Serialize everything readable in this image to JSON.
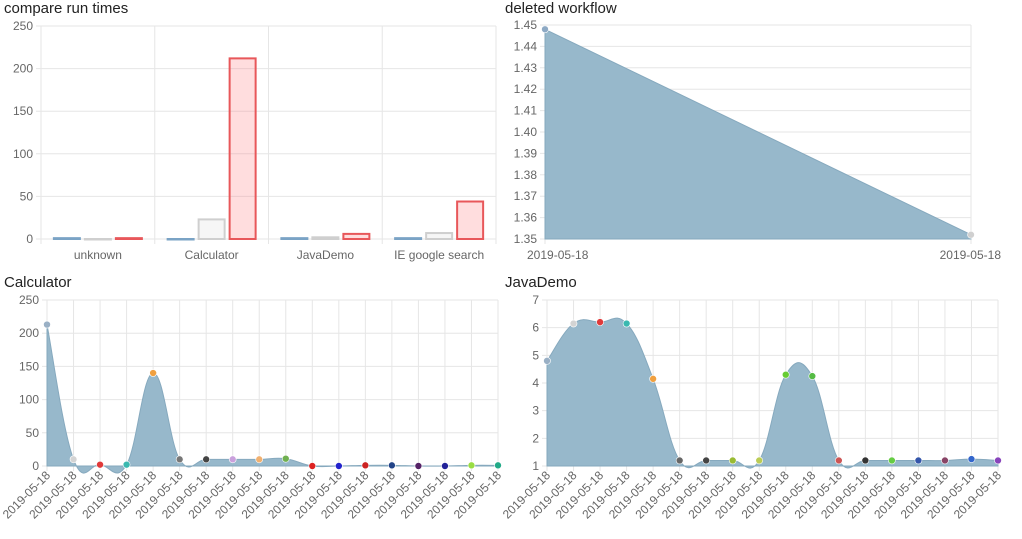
{
  "chart_data": [
    {
      "type": "bar",
      "title": "compare run times",
      "categories": [
        "unknown",
        "Calculator",
        "JavaDemo",
        "IE google search"
      ],
      "series": [
        {
          "values": [
            1,
            0,
            1,
            1
          ],
          "color": "#7aa3c5"
        },
        {
          "values": [
            0,
            23,
            2,
            7
          ],
          "color": "#cfcfcf"
        },
        {
          "values": [
            1,
            212,
            6,
            44
          ],
          "color": "#e8575a"
        }
      ],
      "ylim": [
        0,
        250
      ],
      "yticks": [
        0,
        50,
        100,
        150,
        200,
        250
      ],
      "grid": true
    },
    {
      "type": "area",
      "title": "deleted workflow",
      "x": [
        "2019-05-18",
        "2019-05-18"
      ],
      "values": [
        1.448,
        1.352
      ],
      "ylim": [
        1.35,
        1.45
      ],
      "yticks": [
        "1.35",
        "1.36",
        "1.37",
        "1.38",
        "1.39",
        "1.40",
        "1.41",
        "1.42",
        "1.43",
        "1.44",
        "1.45"
      ],
      "fill": "#97b8cb",
      "point_colors": [
        "#8da9c4",
        "#d0d0d0"
      ],
      "grid": true
    },
    {
      "type": "area",
      "title": "Calculator",
      "x": [
        "2019-05-18",
        "2019-05-18",
        "2019-05-18",
        "2019-05-18",
        "2019-05-18",
        "2019-05-18",
        "2019-05-18",
        "2019-05-18",
        "2019-05-18",
        "2019-05-18",
        "2019-05-18",
        "2019-05-18",
        "2019-05-18",
        "2019-05-18",
        "2019-05-18",
        "2019-05-18",
        "2019-05-18",
        "2019-05-18"
      ],
      "values": [
        213,
        10,
        2,
        2,
        140,
        10,
        10,
        10,
        10,
        11,
        0,
        0,
        1,
        1,
        0,
        0,
        1,
        1
      ],
      "ylim": [
        0,
        250
      ],
      "yticks": [
        0,
        50,
        100,
        150,
        200,
        250
      ],
      "fill": "#97b8cb",
      "point_colors": [
        "#9ab0c5",
        "#d3d3d3",
        "#e03a3a",
        "#3ab8b0",
        "#f0a040",
        "#777777",
        "#444444",
        "#c9a0dc",
        "#f0b070",
        "#70b050",
        "#dd2222",
        "#2222cc",
        "#cc2222",
        "#224488",
        "#552266",
        "#222299",
        "#99dd44",
        "#22aa88"
      ],
      "grid": true
    },
    {
      "type": "area",
      "title": "JavaDemo",
      "x": [
        "2019-05-18",
        "2019-05-18",
        "2019-05-18",
        "2019-05-18",
        "2019-05-18",
        "2019-05-18",
        "2019-05-18",
        "2019-05-18",
        "2019-05-18",
        "2019-05-18",
        "2019-05-18",
        "2019-05-18",
        "2019-05-18",
        "2019-05-18",
        "2019-05-18",
        "2019-05-18",
        "2019-05-18",
        "2019-05-18"
      ],
      "values": [
        4.8,
        6.15,
        6.2,
        6.15,
        4.15,
        1.2,
        1.2,
        1.2,
        1.2,
        4.3,
        4.25,
        1.2,
        1.2,
        1.2,
        1.2,
        1.2,
        1.25,
        1.2
      ],
      "ylim": [
        1,
        7
      ],
      "yticks": [
        1,
        2,
        3,
        4,
        5,
        6,
        7
      ],
      "fill": "#97b8cb",
      "point_colors": [
        "#9ab0c5",
        "#d3d3d3",
        "#e03a3a",
        "#3ab8b0",
        "#f0a040",
        "#666666",
        "#444444",
        "#99bb33",
        "#bbcc55",
        "#66cc33",
        "#55bb44",
        "#cc5555",
        "#333333",
        "#66cc44",
        "#3355aa",
        "#884466",
        "#3366cc",
        "#8844bb"
      ],
      "grid": true
    }
  ]
}
